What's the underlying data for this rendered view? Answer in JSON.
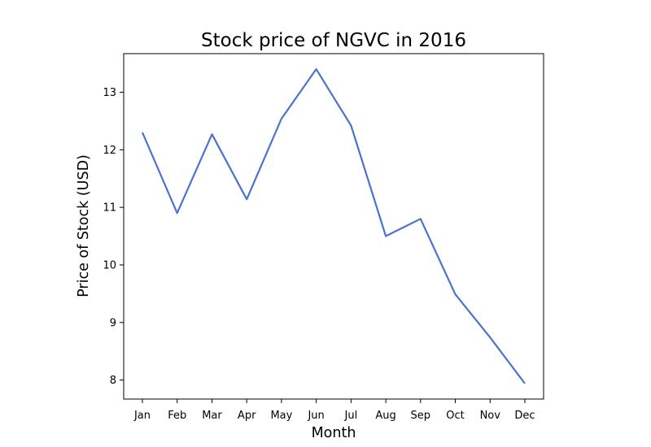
{
  "chart_data": {
    "type": "line",
    "title": "Stock price of NGVC in 2016",
    "xlabel": "Month",
    "ylabel": "Price of Stock (USD)",
    "categories": [
      "Jan",
      "Feb",
      "Mar",
      "Apr",
      "May",
      "Jun",
      "Jul",
      "Aug",
      "Sep",
      "Oct",
      "Nov",
      "Dec"
    ],
    "series": [
      {
        "values": [
          12.3,
          10.9,
          12.27,
          11.14,
          12.54,
          13.4,
          12.42,
          10.5,
          10.8,
          9.49,
          8.74,
          7.94
        ]
      }
    ],
    "yticks": [
      8,
      9,
      10,
      11,
      12,
      13
    ],
    "ylim": [
      7.67,
      13.67
    ],
    "grid": false,
    "line_color": "#4c72c9"
  }
}
